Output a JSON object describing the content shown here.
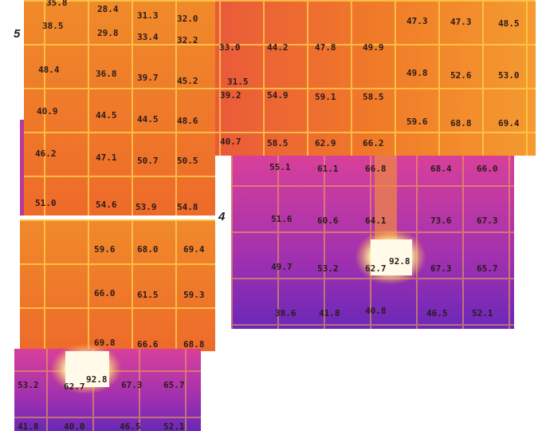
{
  "side_labels": [
    "5",
    "4"
  ],
  "tiles": [
    {
      "labels": [
        "35.8",
        "28.4",
        "31.3",
        "32.0",
        "38.5",
        "29.8",
        "33.4",
        "32.2",
        "48.4",
        "36.8",
        "39.7",
        "45.2",
        "40.9",
        "44.5",
        "44.5",
        "48.6",
        "46.2",
        "47.1",
        "50.7",
        "50.5",
        "51.0",
        "54.6",
        "53.9",
        "54.8"
      ]
    },
    {
      "labels": [
        "47.3",
        "47.3",
        "48.5",
        "33.0",
        "44.2",
        "47.8",
        "49.9",
        "31.5",
        "39.2",
        "54.9",
        "59.1",
        "58.5",
        "49.8",
        "52.6",
        "53.0",
        "59.6",
        "68.8",
        "69.4",
        "40.7",
        "58.5",
        "62.9",
        "66.2"
      ]
    },
    {
      "labels": [
        "55.1",
        "61.1",
        "66.8",
        "68.4",
        "66.0",
        "51.6",
        "60.6",
        "64.1",
        "73.6",
        "67.3",
        "49.7",
        "53.2",
        "62.7",
        "92.8",
        "67.3",
        "65.7",
        "38.6",
        "41.8",
        "40.8",
        "46.5",
        "52.1"
      ]
    },
    {
      "labels": [
        "59.6",
        "68.0",
        "69.4",
        "66.0",
        "61.5",
        "59.3",
        "69.8",
        "66.6",
        "68.8"
      ]
    },
    {
      "labels": [
        "53.2",
        "62.7",
        "92.8",
        "67.3",
        "65.7",
        "41.8",
        "40.0",
        "46.5",
        "52.1"
      ]
    }
  ]
}
